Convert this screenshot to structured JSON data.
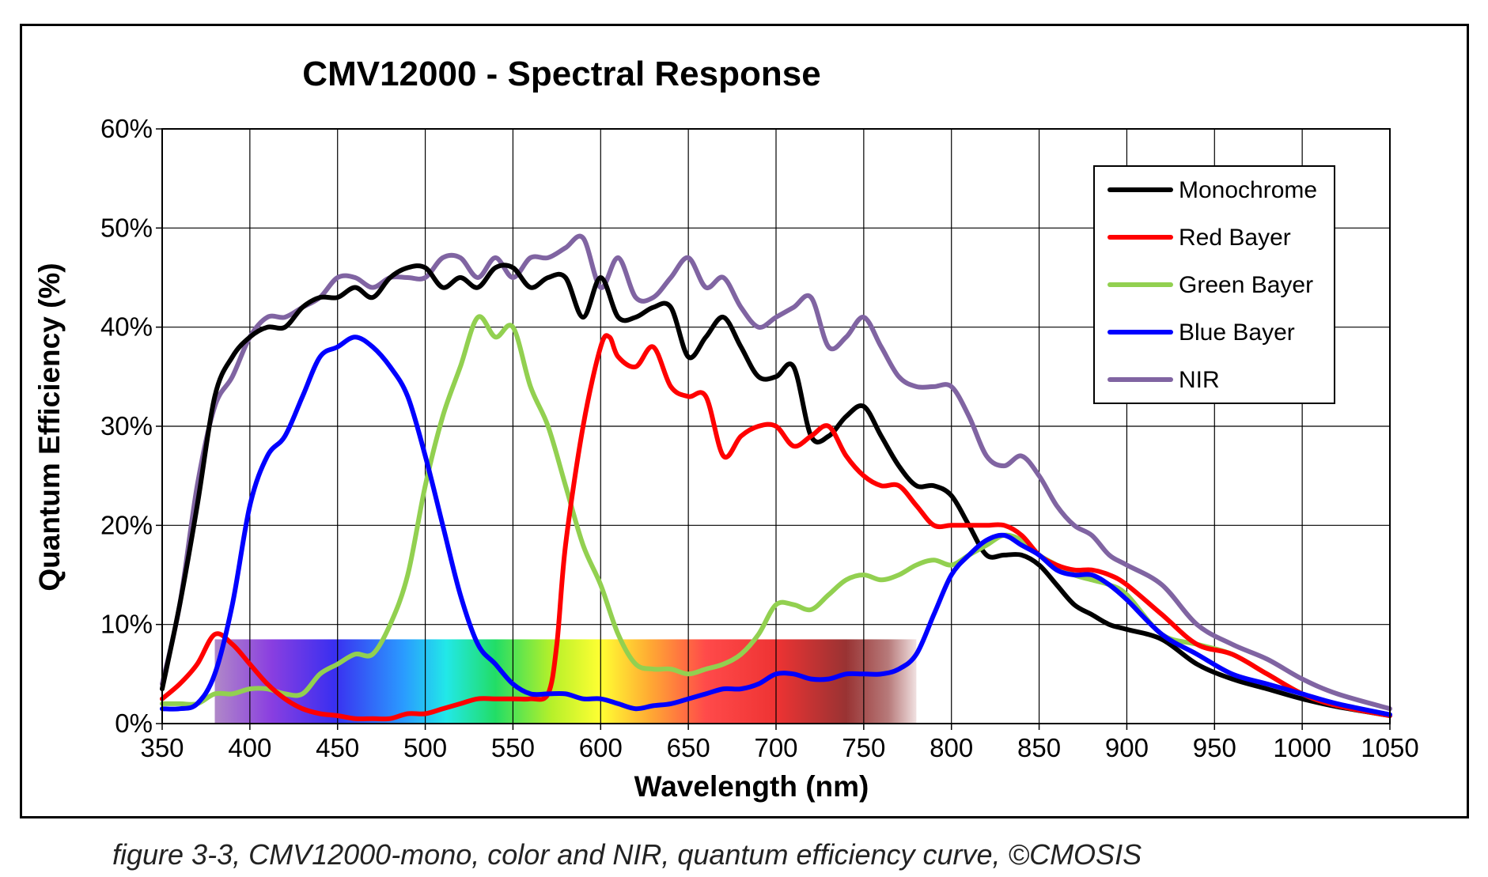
{
  "caption": "figure 3-3, CMV12000-mono, color and NIR, quantum efficiency curve, ©CMOSIS",
  "chart_data": {
    "type": "line",
    "title": "CMV12000 - Spectral Response",
    "xlabel": "Wavelength (nm)",
    "ylabel": "Quantum Efficiency (%)",
    "xlim": [
      350,
      1050
    ],
    "ylim": [
      0,
      60
    ],
    "x_ticks": [
      "350",
      "400",
      "450",
      "500",
      "550",
      "600",
      "650",
      "700",
      "750",
      "800",
      "850",
      "900",
      "950",
      "1000",
      "1050"
    ],
    "y_ticks": [
      "0%",
      "10%",
      "20%",
      "30%",
      "40%",
      "50%",
      "60%"
    ],
    "grid": true,
    "legend_position": "top-right",
    "spectrum_band": {
      "from": 380,
      "to": 780,
      "height": 8.5
    },
    "series": [
      {
        "name": "Monochrome",
        "color": "#000000",
        "x": [
          350,
          360,
          370,
          380,
          390,
          400,
          410,
          420,
          430,
          440,
          450,
          460,
          470,
          480,
          490,
          500,
          510,
          520,
          530,
          540,
          550,
          560,
          570,
          580,
          590,
          600,
          610,
          620,
          630,
          640,
          650,
          660,
          670,
          680,
          690,
          700,
          710,
          720,
          730,
          740,
          750,
          760,
          770,
          780,
          790,
          800,
          810,
          820,
          830,
          840,
          850,
          860,
          870,
          880,
          890,
          900,
          920,
          940,
          960,
          980,
          1000,
          1020,
          1050
        ],
        "y": [
          3.5,
          12,
          22,
          33,
          37,
          39,
          40,
          40,
          42,
          43,
          43,
          44,
          43,
          45,
          46,
          46,
          44,
          45,
          44,
          46,
          46,
          44,
          45,
          45,
          41,
          45,
          41,
          41,
          42,
          42,
          37,
          39,
          41,
          38,
          35,
          35,
          36,
          29,
          29,
          31,
          32,
          29,
          26,
          24,
          24,
          23,
          20,
          17,
          17,
          17,
          16,
          14,
          12,
          11,
          10,
          9.5,
          8.5,
          6,
          4.5,
          3.5,
          2.5,
          1.7,
          0.8
        ]
      },
      {
        "name": "Red Bayer",
        "color": "#ff0000",
        "x": [
          350,
          360,
          370,
          380,
          390,
          400,
          410,
          420,
          430,
          440,
          450,
          460,
          470,
          480,
          490,
          500,
          510,
          520,
          530,
          540,
          550,
          560,
          570,
          575,
          580,
          590,
          600,
          605,
          610,
          620,
          630,
          640,
          650,
          660,
          670,
          680,
          690,
          700,
          710,
          720,
          730,
          740,
          750,
          760,
          770,
          780,
          790,
          800,
          810,
          820,
          830,
          840,
          850,
          860,
          870,
          880,
          890,
          900,
          920,
          940,
          960,
          980,
          1000,
          1020,
          1050
        ],
        "y": [
          2.5,
          4,
          6,
          9,
          8,
          6,
          4,
          2.5,
          1.5,
          1,
          0.8,
          0.5,
          0.5,
          0.5,
          1,
          1,
          1.5,
          2,
          2.5,
          2.5,
          2.5,
          2.5,
          3,
          8,
          18,
          30,
          38,
          39,
          37,
          36,
          38,
          34,
          33,
          33,
          27,
          29,
          30,
          30,
          28,
          29,
          30,
          27,
          25,
          24,
          24,
          22,
          20,
          20,
          20,
          20,
          20,
          19,
          17,
          16,
          15.5,
          15.5,
          15,
          14,
          11,
          8,
          7,
          5,
          3,
          1.8,
          0.8
        ]
      },
      {
        "name": "Green Bayer",
        "color": "#92d050",
        "x": [
          350,
          360,
          370,
          380,
          390,
          400,
          410,
          420,
          430,
          440,
          450,
          460,
          470,
          480,
          490,
          500,
          510,
          520,
          530,
          540,
          550,
          560,
          570,
          580,
          590,
          600,
          610,
          620,
          630,
          640,
          650,
          660,
          670,
          680,
          690,
          700,
          710,
          720,
          730,
          740,
          750,
          760,
          770,
          780,
          790,
          800,
          810,
          820,
          830,
          840,
          850,
          860,
          870,
          880,
          890,
          900,
          920,
          940,
          960,
          980,
          1000,
          1020,
          1050
        ],
        "y": [
          2,
          2,
          2,
          3,
          3,
          3.5,
          3.5,
          3,
          3,
          5,
          6,
          7,
          7,
          10,
          15,
          24,
          31,
          36,
          41,
          39,
          40,
          34,
          30,
          24,
          18,
          14,
          9,
          6,
          5.5,
          5.5,
          5,
          5.5,
          6,
          7,
          9,
          12,
          12,
          11.5,
          13,
          14.5,
          15,
          14.5,
          15,
          16,
          16.5,
          16,
          17,
          18,
          19,
          18.5,
          17,
          16,
          15,
          14.5,
          14,
          13,
          9,
          8,
          7,
          5,
          3,
          1.8,
          0.8
        ]
      },
      {
        "name": "Blue Bayer",
        "color": "#0000ff",
        "x": [
          350,
          360,
          370,
          380,
          390,
          400,
          410,
          420,
          430,
          440,
          450,
          460,
          470,
          480,
          490,
          500,
          510,
          520,
          530,
          540,
          550,
          560,
          570,
          580,
          590,
          600,
          610,
          620,
          630,
          640,
          650,
          660,
          670,
          680,
          690,
          700,
          710,
          720,
          730,
          740,
          750,
          760,
          770,
          780,
          790,
          800,
          810,
          820,
          830,
          840,
          850,
          860,
          870,
          880,
          890,
          900,
          920,
          940,
          960,
          980,
          1000,
          1020,
          1050
        ],
        "y": [
          1.5,
          1.5,
          2,
          5,
          12,
          22,
          27,
          29,
          33,
          37,
          38,
          39,
          38,
          36,
          33,
          27,
          20,
          13,
          8,
          6,
          4,
          3,
          3,
          3,
          2.5,
          2.5,
          2,
          1.5,
          1.8,
          2,
          2.5,
          3,
          3.5,
          3.5,
          4,
          5,
          5,
          4.5,
          4.5,
          5,
          5,
          5,
          5.5,
          7,
          11,
          15,
          17,
          18.5,
          19,
          18,
          17,
          15.5,
          15,
          15,
          14,
          12.5,
          9,
          7,
          5,
          4,
          3,
          2,
          0.9
        ]
      },
      {
        "name": "NIR",
        "color": "#8064a2",
        "x": [
          350,
          360,
          370,
          380,
          390,
          400,
          410,
          420,
          430,
          440,
          450,
          460,
          470,
          480,
          490,
          500,
          510,
          520,
          530,
          540,
          550,
          560,
          570,
          580,
          590,
          600,
          610,
          620,
          630,
          640,
          650,
          660,
          670,
          680,
          690,
          700,
          710,
          720,
          730,
          740,
          750,
          760,
          770,
          780,
          790,
          800,
          810,
          820,
          830,
          840,
          850,
          860,
          870,
          880,
          890,
          900,
          920,
          940,
          960,
          980,
          1000,
          1020,
          1050
        ],
        "y": [
          4,
          12,
          24,
          32,
          35,
          39,
          41,
          41,
          42,
          43,
          45,
          45,
          44,
          45,
          45,
          45,
          47,
          47,
          45,
          47,
          45,
          47,
          47,
          48,
          49,
          44,
          47,
          43,
          43,
          45,
          47,
          44,
          45,
          42,
          40,
          41,
          42,
          43,
          38,
          39,
          41,
          38,
          35,
          34,
          34,
          34,
          31,
          27,
          26,
          27,
          25,
          22,
          20,
          19,
          17,
          16,
          14,
          10,
          8,
          6.5,
          4.5,
          3,
          1.5
        ]
      }
    ]
  }
}
